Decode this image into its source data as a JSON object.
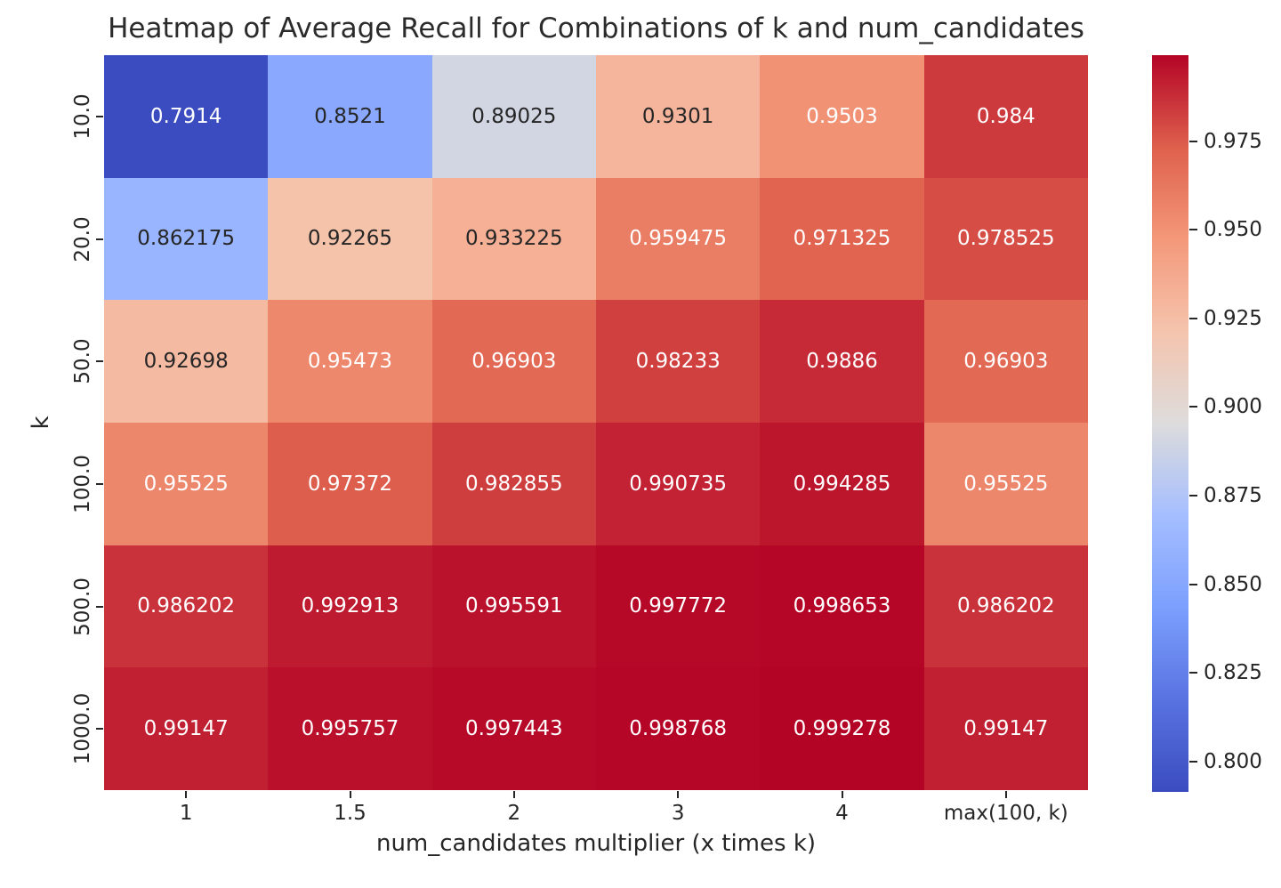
{
  "chart_data": {
    "type": "heatmap",
    "title": "Heatmap of Average Recall for Combinations of k and num_candidates",
    "xlabel": "num_candidates multiplier (x times k)",
    "ylabel": "k",
    "x_categories": [
      "1",
      "1.5",
      "2",
      "3",
      "4",
      "max(100, k)"
    ],
    "y_categories": [
      "10.0",
      "20.0",
      "50.0",
      "100.0",
      "500.0",
      "1000.0"
    ],
    "values": [
      [
        0.7914,
        0.8521,
        0.89025,
        0.9301,
        0.9503,
        0.984
      ],
      [
        0.862175,
        0.92265,
        0.933225,
        0.959475,
        0.971325,
        0.978525
      ],
      [
        0.92698,
        0.95473,
        0.96903,
        0.98233,
        0.9886,
        0.96903
      ],
      [
        0.95525,
        0.97372,
        0.982855,
        0.990735,
        0.994285,
        0.95525
      ],
      [
        0.986202,
        0.992913,
        0.995591,
        0.997772,
        0.998653,
        0.986202
      ],
      [
        0.99147,
        0.995757,
        0.997443,
        0.998768,
        0.999278,
        0.99147
      ]
    ],
    "vmin": 0.7914,
    "vmax": 0.999278,
    "colormap": "coolwarm",
    "colormap_stops": [
      [
        0.0,
        [
          59,
          76,
          192
        ]
      ],
      [
        0.125,
        [
          89,
          115,
          225
        ]
      ],
      [
        0.25,
        [
          124,
          159,
          254
        ]
      ],
      [
        0.375,
        [
          165,
          190,
          255
        ]
      ],
      [
        0.5,
        [
          221,
          220,
          220
        ]
      ],
      [
        0.625,
        [
          245,
          196,
          173
        ]
      ],
      [
        0.75,
        [
          244,
          152,
          122
        ]
      ],
      [
        0.875,
        [
          222,
          96,
          77
        ]
      ],
      [
        1.0,
        [
          180,
          4,
          38
        ]
      ]
    ],
    "colorbar_ticks": [
      0.975,
      0.95,
      0.925,
      0.9,
      0.875,
      0.85,
      0.825,
      0.8
    ],
    "annotation_colors": {
      "on_dark": "#ffffff",
      "on_light": "#262626"
    },
    "grid": false,
    "legend_position": "colorbar-right"
  }
}
